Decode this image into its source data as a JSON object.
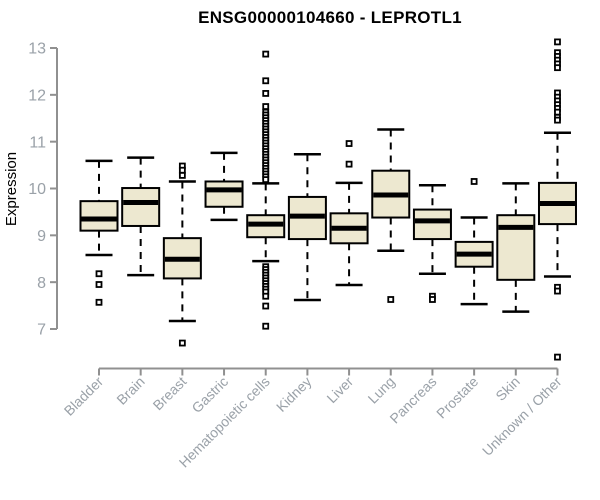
{
  "page": {
    "background": "#ffffff"
  },
  "chart_data": {
    "type": "boxplot",
    "title": "ENSG00000104660 - LEPROTL1",
    "ylabel": "Expression",
    "xlabel": "",
    "ylim": [
      7,
      13
    ],
    "yticks": [
      7,
      8,
      9,
      10,
      11,
      12,
      13
    ],
    "grid": false,
    "legend": "none",
    "categories": [
      "Bladder",
      "Brain",
      "Breast",
      "Gastric",
      "Hematopoietic cells",
      "Kidney",
      "Liver",
      "Lung",
      "Pancreas",
      "Prostate",
      "Skin",
      "Unknown / Other"
    ],
    "series": [
      {
        "category": "Bladder",
        "whisker_low": 8.58,
        "q1": 9.1,
        "median": 9.35,
        "q3": 9.73,
        "whisker_high": 10.59,
        "outliers": [
          8.18,
          7.95,
          7.57
        ]
      },
      {
        "category": "Brain",
        "whisker_low": 8.15,
        "q1": 9.2,
        "median": 9.7,
        "q3": 10.01,
        "whisker_high": 10.66,
        "outliers": []
      },
      {
        "category": "Breast",
        "whisker_low": 7.17,
        "q1": 8.08,
        "median": 8.49,
        "q3": 8.94,
        "whisker_high": 10.15,
        "outliers": [
          10.48,
          10.39,
          10.28,
          6.7
        ]
      },
      {
        "category": "Gastric",
        "whisker_low": 9.33,
        "q1": 9.61,
        "median": 9.97,
        "q3": 10.15,
        "whisker_high": 10.76,
        "outliers": []
      },
      {
        "category": "Hematopoietic cells",
        "whisker_low": 8.45,
        "q1": 8.96,
        "median": 9.24,
        "q3": 9.43,
        "whisker_high": 10.11,
        "outliers": [
          12.87,
          12.3,
          12.03,
          11.75,
          11.63,
          11.57,
          11.51,
          11.45,
          11.39,
          11.33,
          11.27,
          11.21,
          11.15,
          11.09,
          11.03,
          10.97,
          10.91,
          10.85,
          10.79,
          10.73,
          10.67,
          10.61,
          10.55,
          10.49,
          10.43,
          10.37,
          10.31,
          10.25,
          10.19,
          8.33,
          8.27,
          8.21,
          8.15,
          8.09,
          8.03,
          7.97,
          7.91,
          7.85,
          7.79,
          7.7,
          7.49,
          7.06
        ]
      },
      {
        "category": "Kidney",
        "whisker_low": 7.62,
        "q1": 8.92,
        "median": 9.41,
        "q3": 9.82,
        "whisker_high": 10.73,
        "outliers": []
      },
      {
        "category": "Liver",
        "whisker_low": 7.94,
        "q1": 8.83,
        "median": 9.15,
        "q3": 9.47,
        "whisker_high": 10.12,
        "outliers": [
          10.96,
          10.52
        ]
      },
      {
        "category": "Lung",
        "whisker_low": 8.67,
        "q1": 9.38,
        "median": 9.86,
        "q3": 10.38,
        "whisker_high": 11.26,
        "outliers": [
          7.63
        ]
      },
      {
        "category": "Pancreas",
        "whisker_low": 8.18,
        "q1": 8.92,
        "median": 9.31,
        "q3": 9.55,
        "whisker_high": 10.07,
        "outliers": [
          7.7,
          7.63
        ]
      },
      {
        "category": "Prostate",
        "whisker_low": 7.53,
        "q1": 8.33,
        "median": 8.6,
        "q3": 8.86,
        "whisker_high": 9.38,
        "outliers": [
          10.15
        ]
      },
      {
        "category": "Skin",
        "whisker_low": 7.37,
        "q1": 8.05,
        "median": 9.17,
        "q3": 9.43,
        "whisker_high": 10.11,
        "outliers": []
      },
      {
        "category": "Unknown / Other",
        "whisker_low": 8.12,
        "q1": 9.24,
        "median": 9.68,
        "q3": 10.12,
        "whisker_high": 11.19,
        "outliers": [
          13.13,
          12.9,
          12.82,
          12.74,
          12.66,
          12.58,
          12.04,
          11.95,
          11.87,
          11.79,
          11.71,
          11.63,
          11.52,
          11.46,
          7.89,
          7.81,
          6.4
        ]
      }
    ],
    "style": {
      "box_fill": "#EDE8D0",
      "box_border": "#000000",
      "median_color": "#000000",
      "whisker_color": "#000000",
      "outlier_stroke": "#000000",
      "outlier_fill": "#ffffff",
      "axis_color": "#909090",
      "tick_label_color": "#9aa1a8",
      "title_color": "#000000"
    }
  }
}
